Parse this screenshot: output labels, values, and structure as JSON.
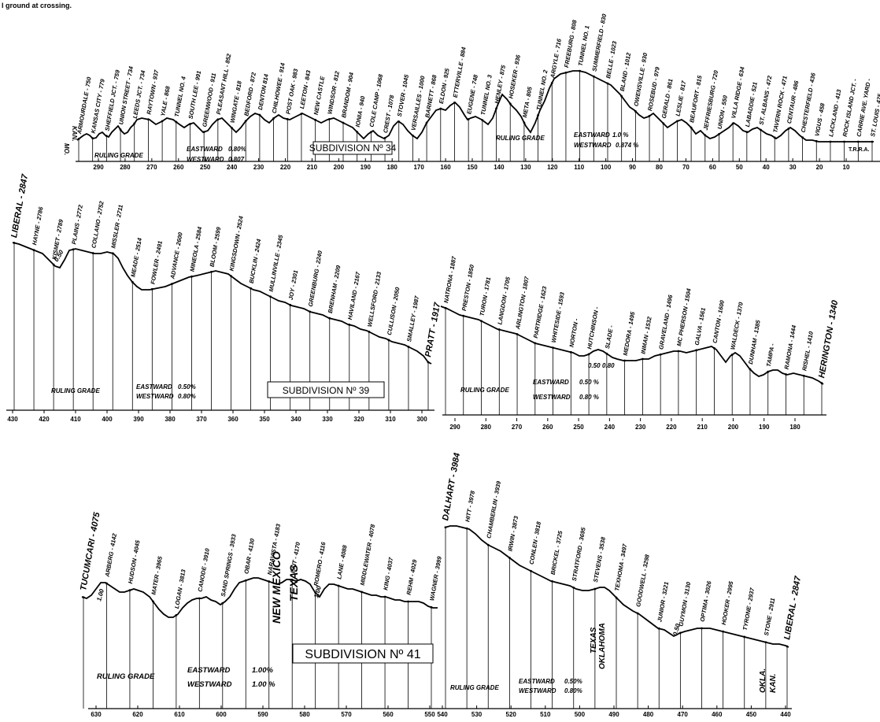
{
  "caption_fragment": "l ground at crossing.",
  "panels": [
    {
      "id": "s34",
      "subdivision": "SUBDIVISION Nº 34",
      "ruling_grade": "RULING GRADE",
      "ruling_grade_2": "RULING GRADE",
      "grade_a": {
        "dir": "EASTWARD",
        "val": "0.80%",
        "dir2": "WESTWARD",
        "val2": "0.807"
      },
      "grade_b": {
        "dir": "EASTWARD",
        "val": "1.0 %",
        "dir2": "WESTWARD",
        "val2": "0.874 %"
      },
      "state_labels": [
        "KAN.",
        "MO."
      ],
      "extra_labels": [
        "T.R.R.A."
      ],
      "miles": [
        "290",
        "280",
        "270",
        "260",
        "250",
        "240",
        "230",
        "220",
        "210",
        "200",
        "190",
        "180",
        "170",
        "160",
        "150",
        "140",
        "130",
        "120",
        "110",
        "100",
        "90",
        "80",
        "70",
        "60",
        "50",
        "40",
        "30",
        "20",
        "10"
      ],
      "stations": [
        "ARMOURDALE - 750",
        "KANSAS CITY - 779",
        "SHEFFIELD JCT. - 759",
        "UNION STREET - 734",
        "LEEDS JCT. - 734",
        "RAYTOWN - 937",
        "YALE - 868",
        "TUNNEL NO. 4",
        "SOUTH LEE - 991",
        "GREENWOOD - 911",
        "PLEASANT HILL - 852",
        "WINGATE - 818",
        "BEDFORD - 872",
        "DENTON 814",
        "CHILHOWEE - 914",
        "POST OAK - 983",
        "LEETON - 843",
        "NEW CASTLE",
        "WINDSOR - 812",
        "BRANDOM - 904",
        "IONIA - 940",
        "COLE CAMP - 1068",
        "CREST - 1078",
        "STOVER - 1045",
        "VERSAILLES - 1000",
        "BARNETT - 868",
        "ELDON - 925",
        "ETTERVILLE - 884",
        "EUGENE - 748",
        "TUNNEL NO. 3",
        "HENLEY - 875",
        "HOSEKER - 936",
        "META - 805",
        "TUNNEL NO. 2",
        "ARGYLE - 716",
        "FREEBURG - 808",
        "TUNNEL NO. 1",
        "SUMMERFIELD - 830",
        "BELLE - 1023",
        "BLAND - 1012",
        "OWENSVILLE - 930",
        "ROSEBUD - 979",
        "GERALD - 861",
        "LESLIE - 817",
        "BEAUFORT - 815",
        "JEFFRIESBURG - 720",
        "UNION - 550",
        "VILLA RIDGE - 634",
        "LABADDIE - 521",
        "ST. ALBANS - 472",
        "TAVERN ROCK - 471",
        "CENTAUR - 486",
        "CHESTERFIELD - 436",
        "VIGUS - 458",
        "LACKLAND - 413",
        "ROCK ISLAND JCT. -",
        "CARRIE AVE. YARD -",
        "ST. LOUIS - 475"
      ]
    },
    {
      "id": "s39",
      "subdivision": "SUBDIVISION Nº 39",
      "ruling_grade": "RULING GRADE",
      "ruling_grade_2": "RULING GRADE",
      "grade_a": {
        "dir": "EASTWARD",
        "val": "0.50%",
        "dir2": "WESTWARD",
        "val2": "0.80%"
      },
      "grade_b": {
        "dir": "EASTWARD",
        "val": "0.50 %",
        "dir2": "WESTWARD",
        "val2": "0.80 %"
      },
      "grade_marks": [
        "0.50",
        "0.50",
        "0.80"
      ],
      "miles_left": [
        "430",
        "420",
        "410",
        "400",
        "390",
        "380",
        "370",
        "360",
        "350",
        "340",
        "330",
        "320",
        "310",
        "300"
      ],
      "miles_right": [
        "290",
        "280",
        "270",
        "260",
        "250",
        "240",
        "230",
        "220",
        "210",
        "200",
        "190",
        "180"
      ],
      "stations_left": [
        "LIBERAL - 2847",
        "HAYNE - 2786",
        "KISMET - 2789",
        "PLAINS - 2772",
        "COLLANO - 2752",
        "MISSLER - 2711",
        "MEADE - 2514",
        "FOWLER - 2491",
        "ADVANCE - 2600",
        "MINEOLA - 2584",
        "BLOOM - 2599",
        "KINGSDOWN - 2524",
        "BUCKLIN - 2424",
        "MULLINVILLE - 2345",
        "JOY - 2301",
        "GREENBURG - 2240",
        "BRENHAM - 2209",
        "HAVILAND - 2167",
        "WELLSFORD - 2133",
        "CULLISON - 2050",
        "SMALLEY - 1987",
        "PRATT - 1917"
      ],
      "stations_right": [
        "NATRONA - 1887",
        "PRESTON - 1850",
        "TURON - 1781",
        "LANGDON - 1705",
        "ARLINGTON - 1807",
        "PARTRIDGE - 1623",
        "WHITESIDE - 1593",
        "NORTON -",
        "HUTCHINSON -",
        "SLADE -",
        "MEDORA - 1495",
        "INMAN - 1532",
        "GRAVELAND - 1496",
        "MC PHERSON - 1504",
        "GALVA - 1561",
        "CANTON - 1600",
        "WALDECK - 1370",
        "DUNHAM - 1385",
        "TAMPA -",
        "RAMONA - 1444",
        "RISHEL - 1410",
        "HERINGTON - 1340"
      ]
    },
    {
      "id": "s41",
      "subdivision": "SUBDIVISION Nº 41",
      "ruling_grade": "RULING GRADE",
      "ruling_grade_2": "RULING GRADE",
      "grade_a": {
        "dir": "EASTWARD",
        "val": "1.00%",
        "dir2": "WESTWARD",
        "val2": "1.00 %"
      },
      "grade_b": {
        "dir": "EASTWARD",
        "val": "0.50%",
        "dir2": "WESTWARD",
        "val2": "0.80%"
      },
      "grade_marks": [
        "1.00",
        "1.00",
        "0.50"
      ],
      "state_labels": [
        "NEW MEXICO",
        "TEXAS",
        "TEXAS",
        "OKLAHOMA",
        "OKLA.",
        "KAN."
      ],
      "miles_left": [
        "630",
        "620",
        "610",
        "600",
        "590",
        "580",
        "570",
        "560",
        "550"
      ],
      "miles_right": [
        "540",
        "530",
        "520",
        "510",
        "500",
        "490",
        "480",
        "470",
        "460",
        "450",
        "440"
      ],
      "stations_left": [
        "TUCUMCARI - 4075",
        "ARBERG - 4142",
        "HUDSON - 4045",
        "MATER - 3965",
        "LOGAN - 3813",
        "CANODE - 3910",
        "SAND SPRINGS - 3933",
        "OBAR - 4130",
        "NARAVISTA - 4183",
        "EXIT - 4170",
        "ROMERO - 4116",
        "LANE - 4088",
        "MIDDLEWATER - 4078",
        "KING - 4037",
        "REHM - 4029",
        "WAGNER - 3999"
      ],
      "stations_right": [
        "DALHART - 3984",
        "HITT - 3978",
        "CHAMBERLIN - 3939",
        "IRWIN - 3873",
        "CONLEN - 3818",
        "BRICKEL - 3725",
        "STRATFORD - 3695",
        "STEVENS - 3538",
        "TEXHOMA - 3497",
        "GOODWELL - 3298",
        "JUNIOR - 3221",
        "GUYMON - 3130",
        "OPTIMA - 3026",
        "HOOKER - 2995",
        "TYRONE - 2937",
        "STONE - 2911",
        "LIBERAL - 2847"
      ]
    }
  ]
}
